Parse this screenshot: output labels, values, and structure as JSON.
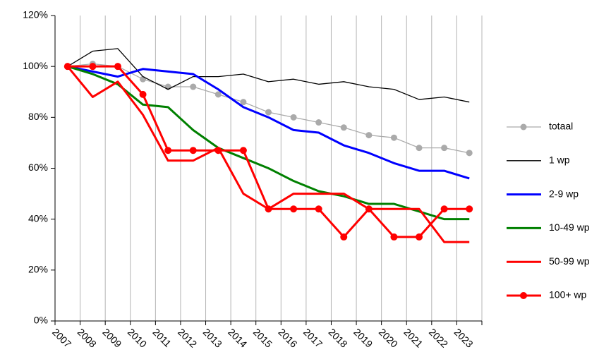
{
  "chart_data": {
    "type": "line",
    "categories": [
      "2007",
      "2008",
      "2009",
      "2010",
      "2011",
      "2012",
      "2013",
      "2014",
      "2015",
      "2016",
      "2017",
      "2018",
      "2019",
      "2020",
      "2021",
      "2022",
      "2023"
    ],
    "ylim": [
      0,
      120
    ],
    "yticks": [
      {
        "value": 0,
        "label": "0%"
      },
      {
        "value": 20,
        "label": "20%"
      },
      {
        "value": 40,
        "label": "40%"
      },
      {
        "value": 60,
        "label": "60%"
      },
      {
        "value": 80,
        "label": "80%"
      },
      {
        "value": 100,
        "label": "100%"
      },
      {
        "value": 120,
        "label": "120%"
      }
    ],
    "grid": true,
    "legend": "right",
    "series": [
      {
        "name": "totaal",
        "color": "#aaaaaa",
        "weight": "thin",
        "marker": true,
        "values": [
          100,
          101,
          100,
          95,
          92,
          92,
          89,
          86,
          82,
          80,
          78,
          76,
          73,
          72,
          68,
          68,
          66
        ]
      },
      {
        "name": "1 wp",
        "color": "#000000",
        "weight": "thin",
        "marker": false,
        "values": [
          100,
          106,
          107,
          96,
          91,
          96,
          96,
          97,
          94,
          95,
          93,
          94,
          92,
          91,
          87,
          88,
          86
        ]
      },
      {
        "name": "2-9 wp",
        "color": "#0000ff",
        "weight": "thick",
        "marker": false,
        "values": [
          100,
          98,
          96,
          99,
          98,
          97,
          91,
          84,
          80,
          75,
          74,
          69,
          66,
          62,
          59,
          59,
          56
        ]
      },
      {
        "name": "10-49 wp",
        "color": "#008000",
        "weight": "thick",
        "marker": false,
        "values": [
          100,
          97,
          93,
          85,
          84,
          75,
          68,
          64,
          60,
          55,
          51,
          49,
          46,
          46,
          43,
          40,
          40
        ]
      },
      {
        "name": "50-99 wp",
        "color": "#ff0000",
        "weight": "thick",
        "marker": false,
        "values": [
          100,
          88,
          94,
          81,
          63,
          63,
          68,
          50,
          44,
          50,
          50,
          50,
          44,
          44,
          44,
          31,
          31
        ]
      },
      {
        "name": "100+ wp",
        "color": "#ff0000",
        "weight": "thick",
        "marker": true,
        "values": [
          100,
          100,
          100,
          89,
          67,
          67,
          67,
          67,
          44,
          44,
          44,
          33,
          44,
          33,
          33,
          44,
          44
        ]
      }
    ]
  }
}
